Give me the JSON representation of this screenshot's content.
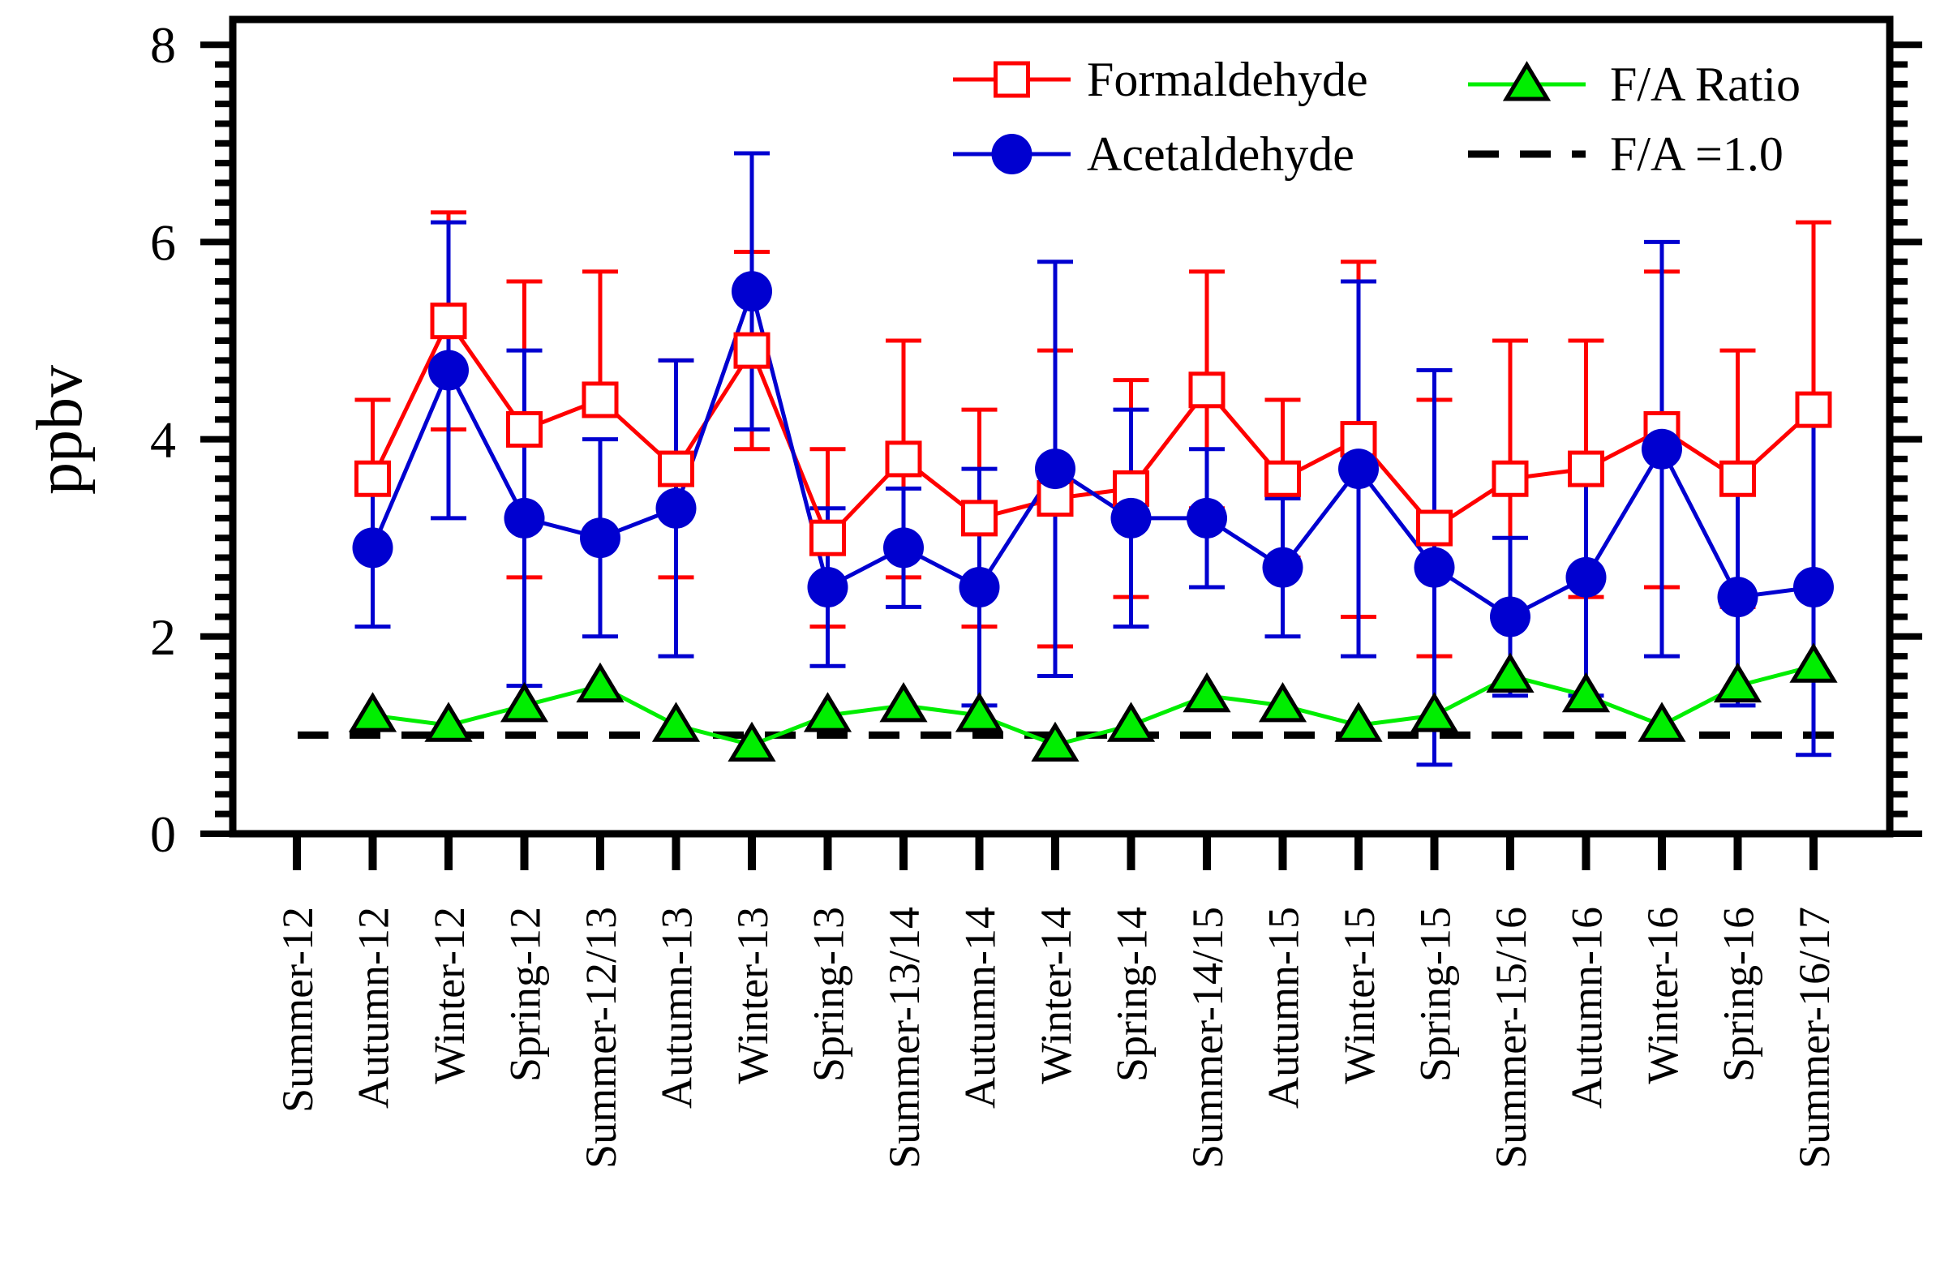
{
  "chart_data": {
    "type": "line",
    "ylabel": "ppbv",
    "xlabel": "",
    "ylim": [
      0,
      8
    ],
    "yticks": [
      0,
      2,
      4,
      6,
      8
    ],
    "grid": false,
    "legend_position": "top-right",
    "categories": [
      "Summer-12",
      "Autumn-12",
      "Winter-12",
      "Spring-12",
      "Summer-12/13",
      "Autumn-13",
      "Winter-13",
      "Spring-13",
      "Summer-13/14",
      "Autumn-14",
      "Winter-14",
      "Spring-14",
      "Summer-14/15",
      "Autumn-15",
      "Winter-15",
      "Spring-15",
      "Summer-15/16",
      "Autumn-16",
      "Winter-16",
      "Spring-16",
      "Summer-16/17"
    ],
    "series": [
      {
        "name": "Formaldehyde",
        "color": "#ff0000",
        "marker": "open-square",
        "values": [
          null,
          3.6,
          5.2,
          4.1,
          4.4,
          3.7,
          4.9,
          3.0,
          3.8,
          3.2,
          3.4,
          3.5,
          4.5,
          3.6,
          4.0,
          3.1,
          3.6,
          3.7,
          4.1,
          3.6,
          4.3
        ],
        "err_high": [
          null,
          4.4,
          6.3,
          5.6,
          5.7,
          4.8,
          5.9,
          3.9,
          5.0,
          4.3,
          4.9,
          4.6,
          5.7,
          4.4,
          5.8,
          4.4,
          5.0,
          5.0,
          5.7,
          4.9,
          6.2
        ],
        "err_low": [
          null,
          3.6,
          4.1,
          2.6,
          4.4,
          2.6,
          3.9,
          2.1,
          2.6,
          2.1,
          1.9,
          2.4,
          3.3,
          2.8,
          2.2,
          1.8,
          2.2,
          2.4,
          2.5,
          2.3,
          4.3
        ]
      },
      {
        "name": "Acetaldehyde",
        "color": "#0000d0",
        "marker": "filled-circle",
        "values": [
          null,
          2.9,
          4.7,
          3.2,
          3.0,
          3.3,
          5.5,
          2.5,
          2.9,
          2.5,
          3.7,
          3.2,
          3.2,
          2.7,
          3.7,
          2.7,
          2.2,
          2.6,
          3.9,
          2.4,
          2.5
        ],
        "err_high": [
          null,
          3.7,
          6.2,
          4.9,
          4.0,
          4.8,
          6.9,
          3.3,
          3.5,
          3.7,
          5.8,
          4.3,
          3.9,
          3.4,
          5.6,
          4.7,
          3.0,
          3.8,
          6.0,
          3.5,
          4.2
        ],
        "err_low": [
          null,
          2.1,
          3.2,
          1.5,
          2.0,
          1.8,
          4.1,
          1.7,
          2.3,
          1.3,
          1.6,
          2.1,
          2.5,
          2.0,
          1.8,
          0.7,
          1.4,
          1.4,
          1.8,
          1.3,
          0.8
        ]
      },
      {
        "name": "F/A Ratio",
        "color": "#00ee00",
        "marker": "filled-triangle",
        "values": [
          null,
          1.2,
          1.1,
          1.3,
          1.5,
          1.1,
          0.9,
          1.2,
          1.3,
          1.2,
          0.9,
          1.1,
          1.4,
          1.3,
          1.1,
          1.2,
          1.6,
          1.4,
          1.1,
          1.5,
          1.7
        ]
      },
      {
        "name": "F/A =1.0",
        "color": "#000000",
        "style": "dashed",
        "constant": 1.0
      }
    ]
  }
}
